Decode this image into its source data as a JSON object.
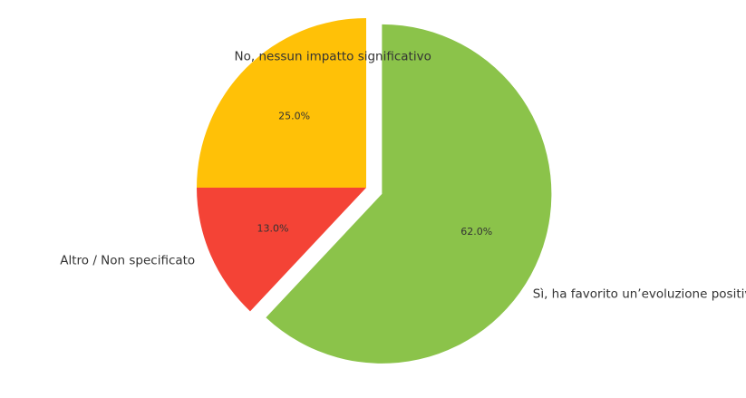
{
  "chart_data": {
    "type": "pie",
    "title": "",
    "slices": [
      {
        "label": "No, nessun impatto significativo",
        "value": 25.0,
        "pct_label": "25.0%",
        "color": "#FFC107",
        "exploded": false
      },
      {
        "label": "Altro / Non specificato",
        "value": 13.0,
        "pct_label": "13.0%",
        "color": "#F44336",
        "exploded": false
      },
      {
        "label": "Sì, ha favorito un’evoluzione positiva",
        "value": 62.0,
        "pct_label": "62.0%",
        "color": "#8BC34A",
        "exploded": true
      }
    ],
    "start_angle": 90,
    "direction": "counterclockwise",
    "legend": "none"
  }
}
